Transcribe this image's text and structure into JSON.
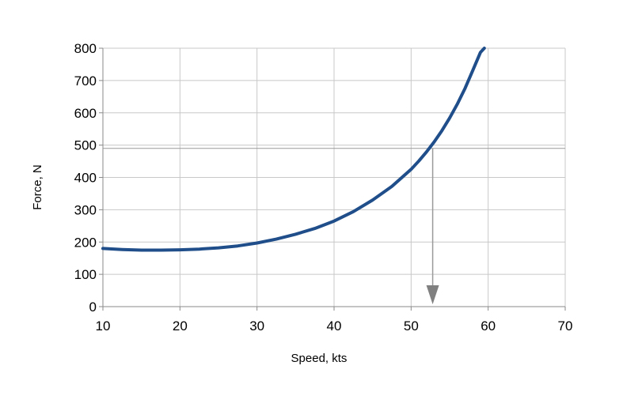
{
  "chart_data": {
    "type": "line",
    "title": "",
    "xlabel": "Speed, kts",
    "ylabel": "Force, N",
    "xlim": [
      10,
      70
    ],
    "ylim": [
      0,
      800
    ],
    "x_ticks": [
      "10",
      "20",
      "30",
      "40",
      "50",
      "60",
      "70"
    ],
    "y_ticks": [
      "0",
      "100",
      "200",
      "300",
      "400",
      "500",
      "600",
      "700",
      "800"
    ],
    "grid": true,
    "legend": "none",
    "series": [
      {
        "color": "#1f4e8a",
        "x": [
          10,
          12.5,
          15,
          17.5,
          20,
          22.5,
          25,
          27.5,
          30,
          32.5,
          35,
          37.5,
          40,
          42.5,
          45,
          47.5,
          50,
          51,
          52,
          53,
          54,
          55,
          56,
          57,
          58,
          59,
          59.5
        ],
        "y": [
          180,
          177,
          175,
          175,
          176,
          178,
          182,
          188,
          197,
          209,
          224,
          242,
          265,
          294,
          330,
          372,
          425,
          451,
          479,
          510,
          545,
          584,
          627,
          676,
          731,
          787,
          800
        ]
      }
    ],
    "annotations": {
      "reference_force": 490,
      "reference_speed": 52.8,
      "line_color": "#9a9a9a",
      "arrow_color": "#808080"
    }
  }
}
